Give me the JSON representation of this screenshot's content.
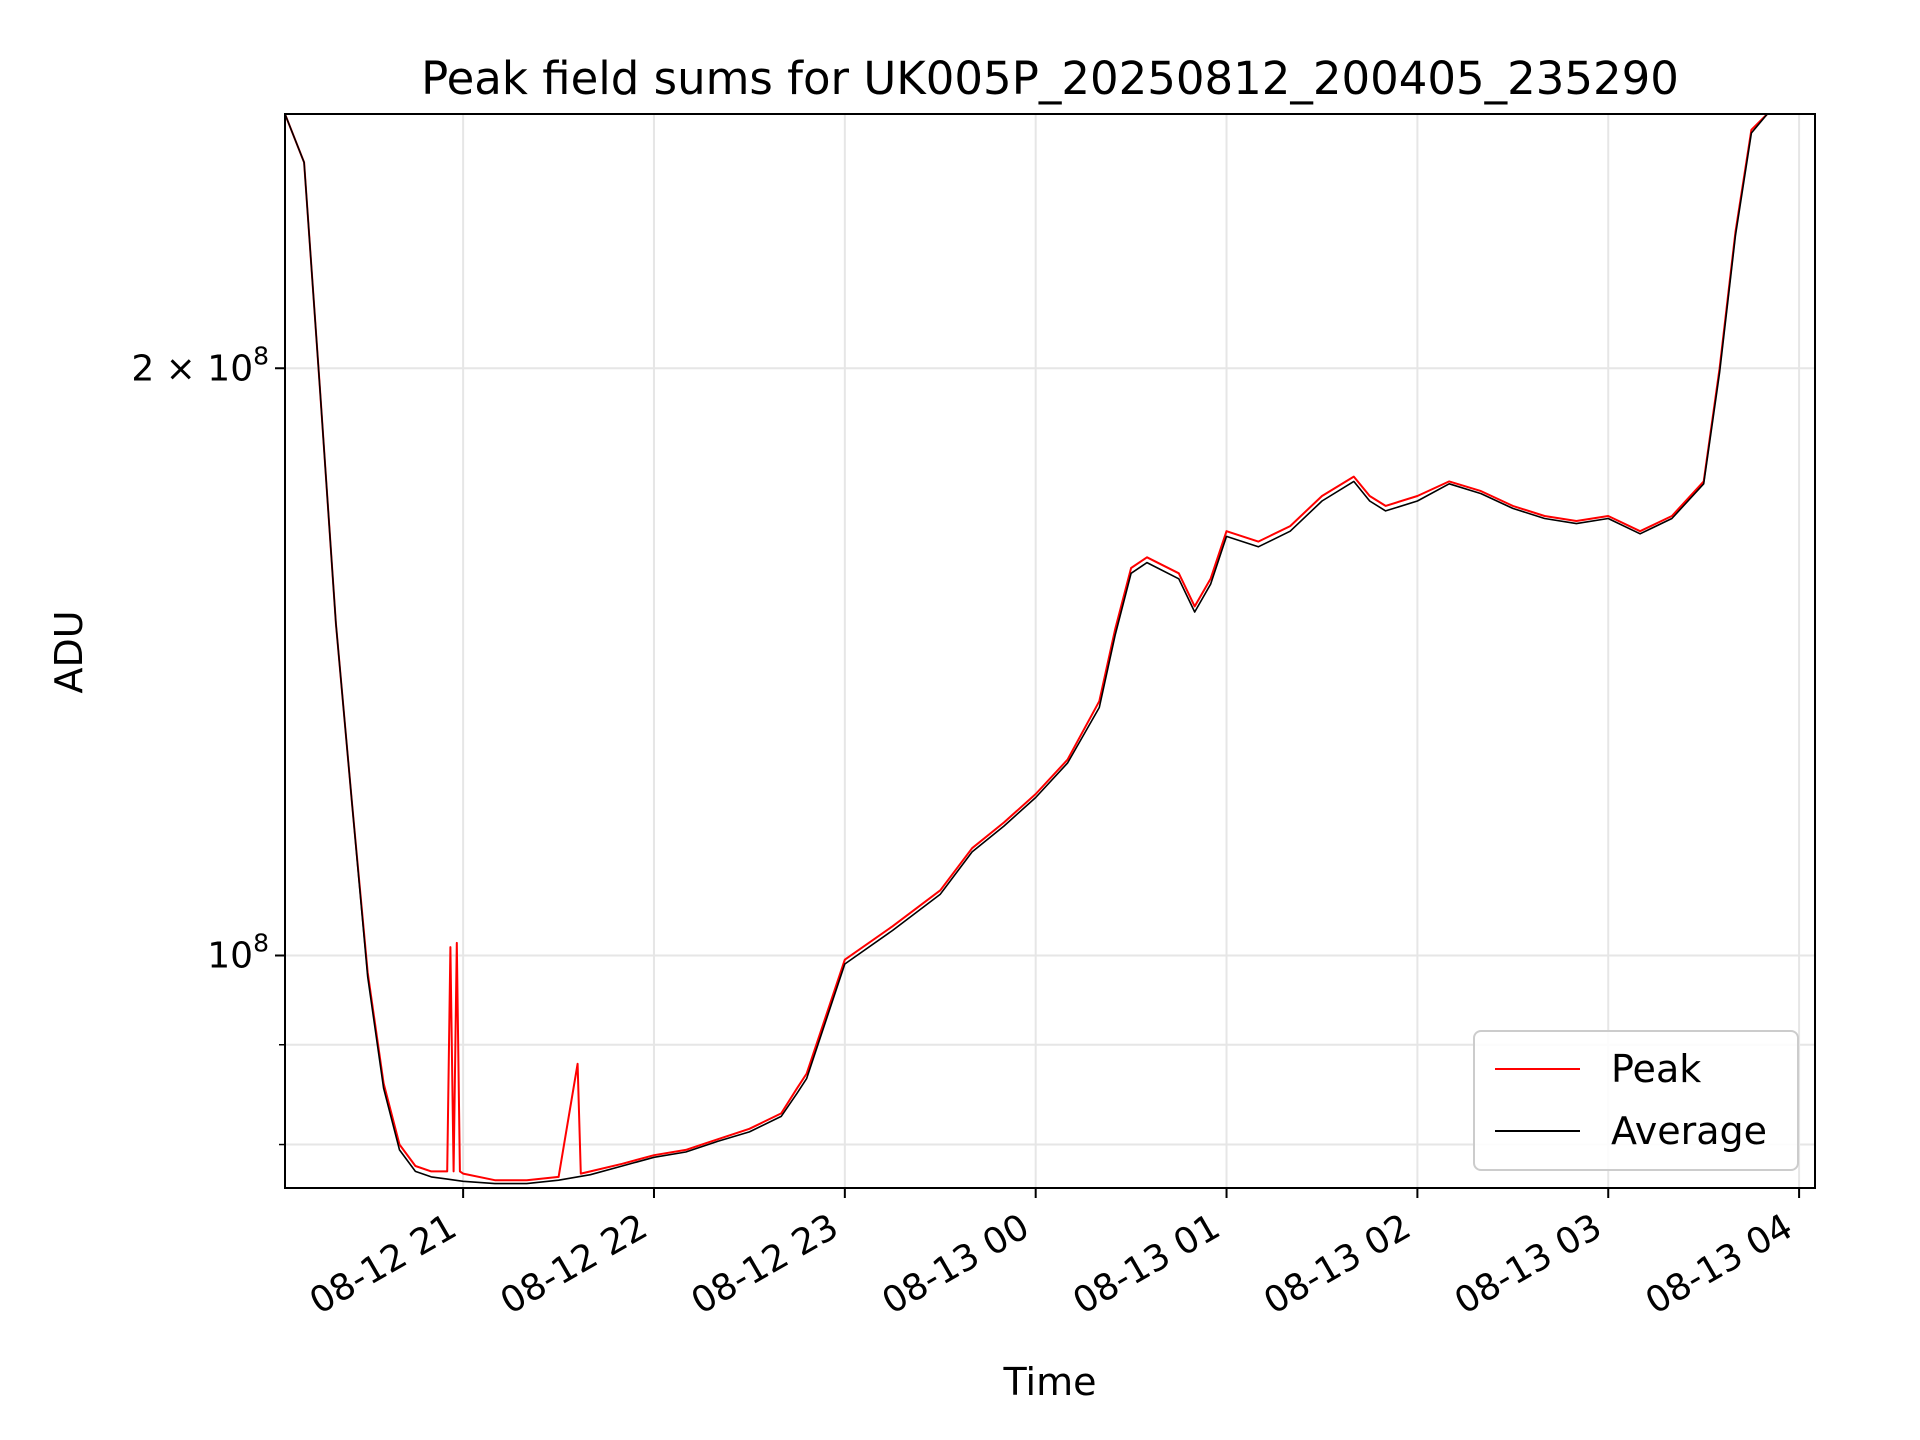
{
  "chart_data": {
    "type": "line",
    "title": "Peak field sums for UK005P_20250812_200405_235290",
    "xlabel": "Time",
    "ylabel": "ADU",
    "yscale": "log",
    "ylim": [
      76000000,
      270000000
    ],
    "xlim": [
      "2025-08-12 20:04",
      "2025-08-13 04:05"
    ],
    "grid": true,
    "legend_position": "lower right",
    "x_ticks": [
      "08-12 21",
      "08-12 22",
      "08-12 23",
      "08-13 00",
      "08-13 01",
      "08-13 02",
      "08-13 03",
      "08-13 04"
    ],
    "y_ticks": [
      {
        "value": 100000000,
        "mantissa": "",
        "base": "10",
        "exponent": "8"
      },
      {
        "value": 200000000,
        "mantissa": "2 × ",
        "base": "10",
        "exponent": "8"
      }
    ],
    "y_minor_ticks": [
      80000000,
      90000000
    ],
    "series": [
      {
        "name": "Peak",
        "color": "#ff0000",
        "x": [
          "2025-08-12 20:04",
          "2025-08-12 20:10",
          "2025-08-12 20:15",
          "2025-08-12 20:20",
          "2025-08-12 20:25",
          "2025-08-12 20:30",
          "2025-08-12 20:35",
          "2025-08-12 20:40",
          "2025-08-12 20:45",
          "2025-08-12 20:50",
          "2025-08-12 20:55",
          "2025-08-12 20:56",
          "2025-08-12 20:57",
          "2025-08-12 20:58",
          "2025-08-12 20:59",
          "2025-08-12 21:00",
          "2025-08-12 21:10",
          "2025-08-12 21:20",
          "2025-08-12 21:30",
          "2025-08-12 21:36",
          "2025-08-12 21:37",
          "2025-08-12 21:40",
          "2025-08-12 21:50",
          "2025-08-12 22:00",
          "2025-08-12 22:10",
          "2025-08-12 22:20",
          "2025-08-12 22:30",
          "2025-08-12 22:40",
          "2025-08-12 22:45",
          "2025-08-12 22:48",
          "2025-08-12 23:00",
          "2025-08-12 23:15",
          "2025-08-12 23:30",
          "2025-08-12 23:40",
          "2025-08-12 23:50",
          "2025-08-13 00:00",
          "2025-08-13 00:10",
          "2025-08-13 00:20",
          "2025-08-13 00:25",
          "2025-08-13 00:30",
          "2025-08-13 00:35",
          "2025-08-13 00:45",
          "2025-08-13 00:50",
          "2025-08-13 00:55",
          "2025-08-13 01:00",
          "2025-08-13 01:10",
          "2025-08-13 01:20",
          "2025-08-13 01:30",
          "2025-08-13 01:40",
          "2025-08-13 01:45",
          "2025-08-13 01:50",
          "2025-08-13 02:00",
          "2025-08-13 02:10",
          "2025-08-13 02:20",
          "2025-08-13 02:30",
          "2025-08-13 02:40",
          "2025-08-13 02:50",
          "2025-08-13 03:00",
          "2025-08-13 03:10",
          "2025-08-13 03:20",
          "2025-08-13 03:30",
          "2025-08-13 03:35",
          "2025-08-13 03:40",
          "2025-08-13 03:45",
          "2025-08-13 03:50"
        ],
        "y": [
          270000000,
          255000000,
          195000000,
          148000000,
          120000000,
          98000000,
          86000000,
          80000000,
          78000000,
          77500000,
          77500000,
          101000000,
          77500000,
          101500000,
          77500000,
          77300000,
          76700000,
          76700000,
          77000000,
          88000000,
          77300000,
          77500000,
          78200000,
          79000000,
          79500000,
          80500000,
          81500000,
          83000000,
          85500000,
          87000000,
          99500000,
          103500000,
          108000000,
          113500000,
          117000000,
          121000000,
          126000000,
          135000000,
          147000000,
          158000000,
          160000000,
          157000000,
          151000000,
          156000000,
          165000000,
          163000000,
          166000000,
          172000000,
          176000000,
          172000000,
          170000000,
          172000000,
          175000000,
          173000000,
          170000000,
          168000000,
          167000000,
          168000000,
          165000000,
          168000000,
          175000000,
          200000000,
          235000000,
          265000000,
          270000000
        ]
      },
      {
        "name": "Average",
        "color": "#000000",
        "x": [
          "2025-08-12 20:04",
          "2025-08-12 20:10",
          "2025-08-12 20:15",
          "2025-08-12 20:20",
          "2025-08-12 20:25",
          "2025-08-12 20:30",
          "2025-08-12 20:35",
          "2025-08-12 20:40",
          "2025-08-12 20:45",
          "2025-08-12 20:50",
          "2025-08-12 20:55",
          "2025-08-12 21:00",
          "2025-08-12 21:10",
          "2025-08-12 21:20",
          "2025-08-12 21:30",
          "2025-08-12 21:40",
          "2025-08-12 21:50",
          "2025-08-12 22:00",
          "2025-08-12 22:10",
          "2025-08-12 22:20",
          "2025-08-12 22:30",
          "2025-08-12 22:40",
          "2025-08-12 22:45",
          "2025-08-12 22:48",
          "2025-08-12 23:00",
          "2025-08-12 23:15",
          "2025-08-12 23:30",
          "2025-08-12 23:40",
          "2025-08-12 23:50",
          "2025-08-13 00:00",
          "2025-08-13 00:10",
          "2025-08-13 00:20",
          "2025-08-13 00:25",
          "2025-08-13 00:30",
          "2025-08-13 00:35",
          "2025-08-13 00:45",
          "2025-08-13 00:50",
          "2025-08-13 00:55",
          "2025-08-13 01:00",
          "2025-08-13 01:10",
          "2025-08-13 01:20",
          "2025-08-13 01:30",
          "2025-08-13 01:40",
          "2025-08-13 01:45",
          "2025-08-13 01:50",
          "2025-08-13 02:00",
          "2025-08-13 02:10",
          "2025-08-13 02:20",
          "2025-08-13 02:30",
          "2025-08-13 02:40",
          "2025-08-13 02:50",
          "2025-08-13 03:00",
          "2025-08-13 03:10",
          "2025-08-13 03:20",
          "2025-08-13 03:30",
          "2025-08-13 03:35",
          "2025-08-13 03:40",
          "2025-08-13 03:45",
          "2025-08-13 03:50"
        ],
        "y": [
          270000000,
          255000000,
          195000000,
          148000000,
          120000000,
          97500000,
          85500000,
          79500000,
          77500000,
          77000000,
          76800000,
          76600000,
          76400000,
          76400000,
          76700000,
          77200000,
          78000000,
          78800000,
          79300000,
          80300000,
          81200000,
          82700000,
          85000000,
          86500000,
          99000000,
          103000000,
          107500000,
          113000000,
          116500000,
          120500000,
          125500000,
          134000000,
          146000000,
          157000000,
          159000000,
          156000000,
          150000000,
          155000000,
          164000000,
          162000000,
          165000000,
          171000000,
          175000000,
          171000000,
          169000000,
          171000000,
          174500000,
          172500000,
          169500000,
          167500000,
          166500000,
          167500000,
          164500000,
          167500000,
          174500000,
          199000000,
          234000000,
          264000000,
          270000000
        ]
      }
    ]
  }
}
